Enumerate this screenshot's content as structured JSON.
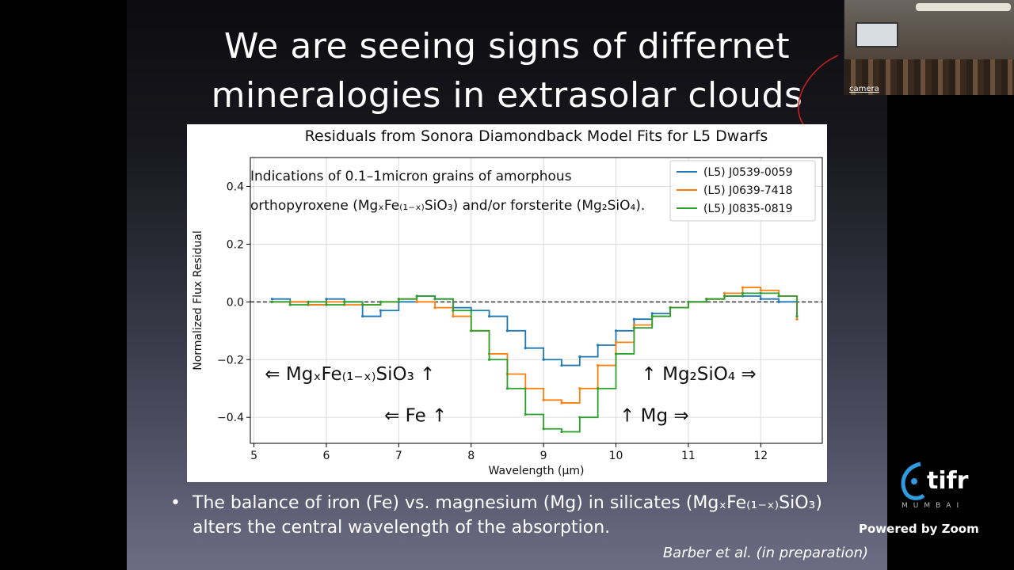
{
  "slide": {
    "title_line1": "We are seeing signs of differnet",
    "title_line2": "mineralogies in extrasolar clouds",
    "bullet_mark": "•",
    "bullet_text": "The balance of iron (Fe) vs. magnesium (Mg) in silicates (MgₓFe₍₁₋ₓ₎SiO₃) alters the central wavelength of the absorption.",
    "citation": "Barber et al. (in preparation)",
    "annotation_color": "#c81e1e"
  },
  "video_panel": {
    "label": "camera"
  },
  "branding": {
    "logo_text": "tifr",
    "logo_subtext": "MUMBAI",
    "powered_by": "Powered by Zoom"
  },
  "chart_data": {
    "type": "line",
    "title": "Residuals from Sonora Diamondback Model Fits for L5 Dwarfs",
    "xlabel": "Wavelength (μm)",
    "ylabel": "Normalized Flux Residual",
    "xlim": [
      4.95,
      12.85
    ],
    "ylim": [
      -0.49,
      0.5
    ],
    "xticks": [
      5,
      6,
      7,
      8,
      9,
      10,
      11,
      12
    ],
    "yticks": [
      -0.4,
      -0.2,
      0.0,
      0.2,
      0.4
    ],
    "xtick_labels": [
      "5",
      "6",
      "7",
      "8",
      "9",
      "10",
      "11",
      "12"
    ],
    "ytick_labels": [
      "−0.4",
      "−0.2",
      "0.0",
      "0.2",
      "0.4"
    ],
    "grid": true,
    "legend_position": "top-right",
    "note_line1": "Indications of 0.1–1micron grains of amorphous",
    "note_line2": "orthopyroxene (MgₓFe₍₁₋ₓ₎SiO₃) and/or forsterite (Mg₂SiO₄).",
    "annotations": [
      {
        "text": "⇐ MgₓFe₍₁₋ₓ₎SiO₃ ↑",
        "x": 5.15,
        "y": -0.27
      },
      {
        "text": "⇐ Fe ↑",
        "x": 6.8,
        "y": -0.415
      },
      {
        "text": "↑ Mg ⇒",
        "x": 10.05,
        "y": -0.415
      },
      {
        "text": "↑ Mg₂SiO₄ ⇒",
        "x": 10.35,
        "y": -0.27
      }
    ],
    "series": [
      {
        "name": "(L5) J0539-0059",
        "color": "#1f77b4",
        "x": [
          5.25,
          5.5,
          5.75,
          6.0,
          6.25,
          6.5,
          6.75,
          7.0,
          7.25,
          7.5,
          7.75,
          8.0,
          8.25,
          8.5,
          8.75,
          9.0,
          9.25,
          9.5,
          9.75,
          10.0,
          10.25,
          10.5,
          10.75,
          11.0,
          11.25,
          11.5,
          11.75,
          12.0,
          12.25,
          12.5
        ],
        "y": [
          0.01,
          0.0,
          -0.01,
          0.01,
          0.0,
          -0.05,
          -0.03,
          0.0,
          0.02,
          0.01,
          -0.02,
          -0.03,
          -0.05,
          -0.1,
          -0.16,
          -0.2,
          -0.22,
          -0.19,
          -0.15,
          -0.1,
          -0.06,
          -0.04,
          -0.02,
          0.0,
          0.01,
          0.02,
          0.02,
          0.01,
          0.0,
          -0.05
        ]
      },
      {
        "name": "(L5) J0639-7418",
        "color": "#ff7f0e",
        "x": [
          5.25,
          5.5,
          5.75,
          6.0,
          6.25,
          6.5,
          6.75,
          7.0,
          7.25,
          7.5,
          7.75,
          8.0,
          8.25,
          8.5,
          8.75,
          9.0,
          9.25,
          9.5,
          9.75,
          10.0,
          10.25,
          10.5,
          10.75,
          11.0,
          11.25,
          11.5,
          11.75,
          12.0,
          12.25,
          12.5
        ],
        "y": [
          0.0,
          0.0,
          -0.01,
          0.0,
          -0.01,
          -0.01,
          0.0,
          0.01,
          0.0,
          -0.02,
          -0.05,
          -0.1,
          -0.18,
          -0.25,
          -0.3,
          -0.34,
          -0.35,
          -0.3,
          -0.22,
          -0.14,
          -0.08,
          -0.05,
          -0.02,
          0.0,
          0.01,
          0.03,
          0.05,
          0.04,
          0.02,
          -0.06
        ]
      },
      {
        "name": "(L5) J0835-0819",
        "color": "#2ca02c",
        "x": [
          5.25,
          5.5,
          5.75,
          6.0,
          6.25,
          6.5,
          6.75,
          7.0,
          7.25,
          7.5,
          7.75,
          8.0,
          8.25,
          8.5,
          8.75,
          9.0,
          9.25,
          9.5,
          9.75,
          10.0,
          10.25,
          10.5,
          10.75,
          11.0,
          11.25,
          11.5,
          11.75,
          12.0,
          12.25,
          12.5
        ],
        "y": [
          0.0,
          -0.01,
          0.0,
          -0.01,
          0.0,
          -0.01,
          0.0,
          0.01,
          0.02,
          0.01,
          -0.03,
          -0.1,
          -0.2,
          -0.3,
          -0.39,
          -0.44,
          -0.45,
          -0.4,
          -0.3,
          -0.18,
          -0.09,
          -0.05,
          -0.02,
          0.0,
          0.01,
          0.02,
          0.03,
          0.03,
          0.02,
          -0.05
        ]
      }
    ]
  }
}
